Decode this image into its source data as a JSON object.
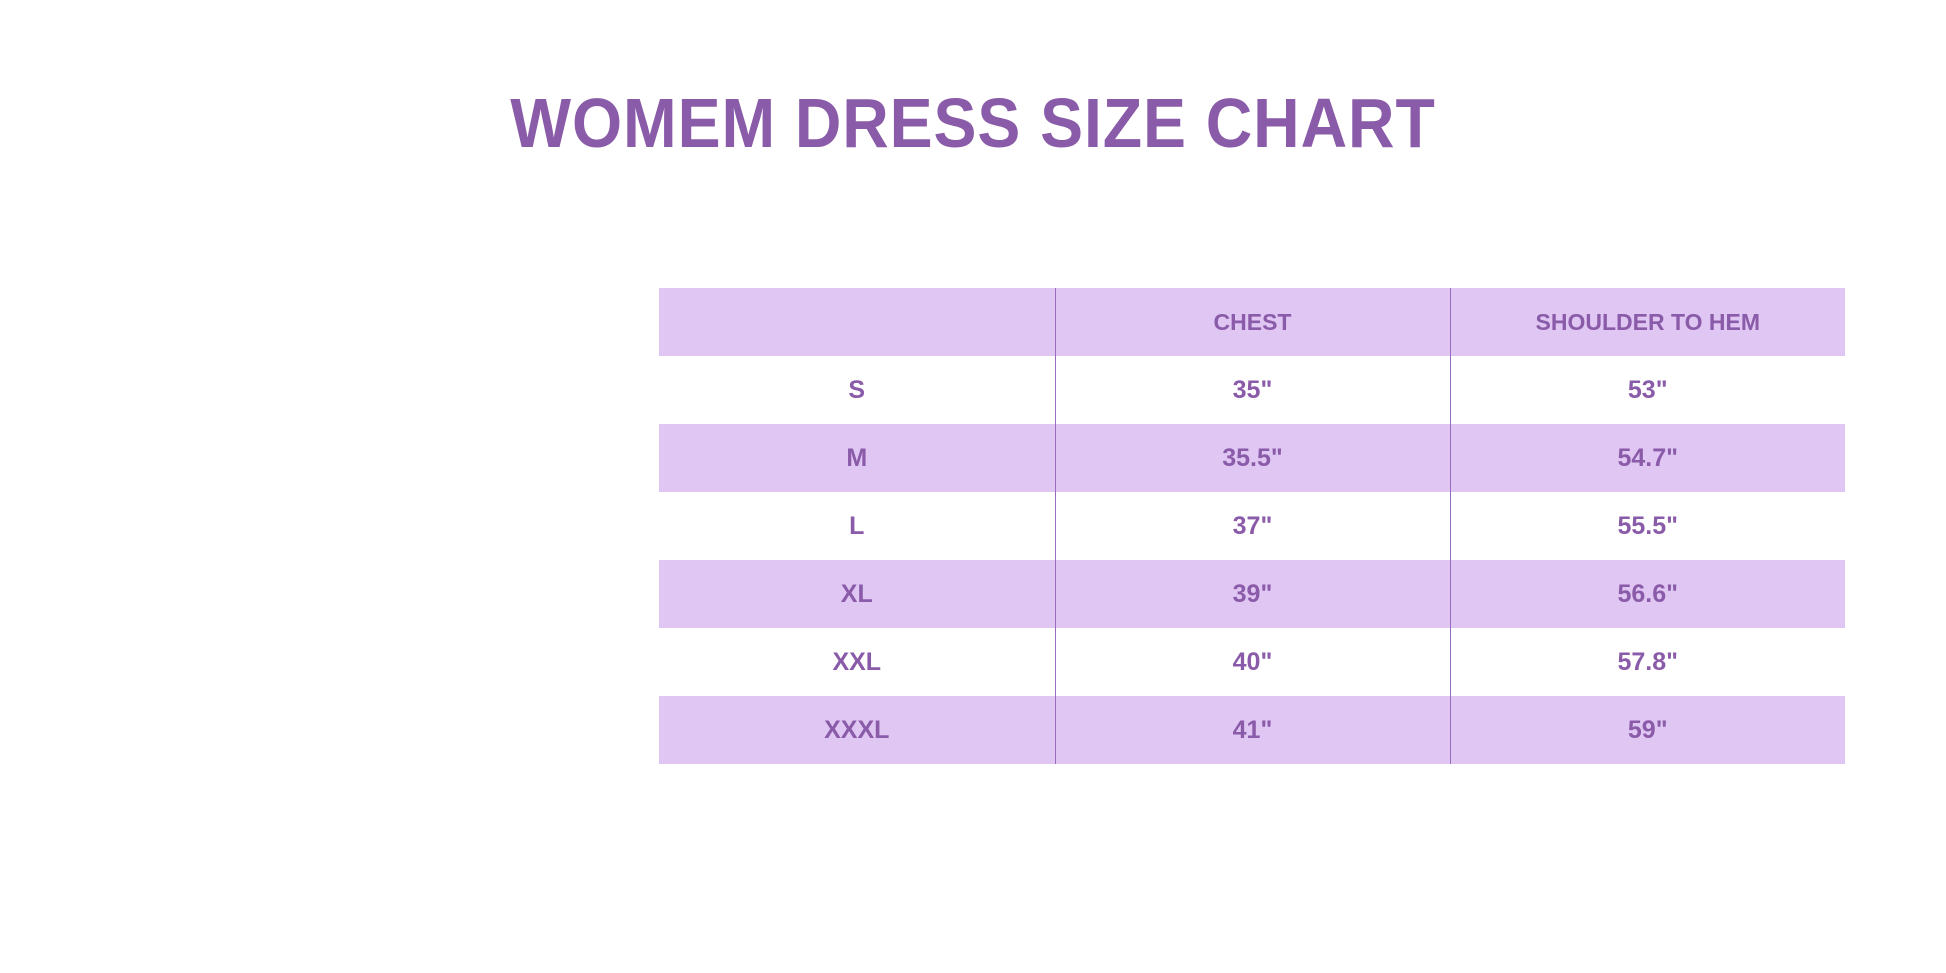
{
  "title": "WOMEM DRESS SIZE CHART",
  "table": {
    "headers": [
      "",
      "CHEST",
      "SHOULDER TO HEM"
    ],
    "rows": [
      [
        "S",
        "35\"",
        "53\""
      ],
      [
        "M",
        "35.5\"",
        "54.7\""
      ],
      [
        "L",
        "37\"",
        "55.5\""
      ],
      [
        "XL",
        "39\"",
        "56.6\""
      ],
      [
        "XXL",
        "40\"",
        "57.8\""
      ],
      [
        "XXXL",
        "41\"",
        "59\""
      ]
    ]
  },
  "colors": {
    "text": "#8a5ba8",
    "row_shade": "#e0c6f3",
    "background": "#ffffff"
  }
}
